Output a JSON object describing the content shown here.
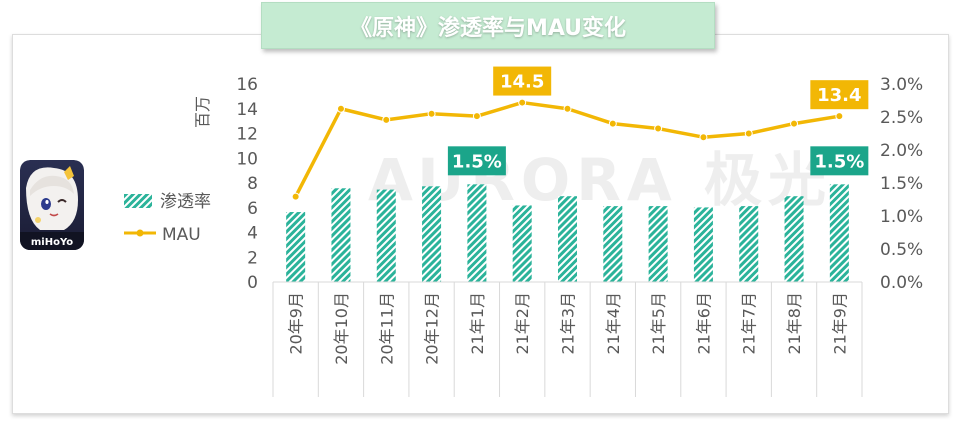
{
  "title": "《原神》渗透率与MAU变化",
  "app_icon": {
    "name": "genshin-app-icon",
    "label": "miHoYo"
  },
  "chart_data": {
    "type": "bar+line",
    "categories": [
      "20年9月",
      "20年10月",
      "20年11月",
      "20年12月",
      "21年1月",
      "21年2月",
      "21年3月",
      "21年4月",
      "21年5月",
      "21年6月",
      "21年7月",
      "21年8月",
      "21年9月"
    ],
    "series": [
      {
        "name": "渗透率",
        "type": "bar",
        "axis": "right",
        "values": [
          1.06,
          1.42,
          1.4,
          1.45,
          1.48,
          1.16,
          1.3,
          1.15,
          1.15,
          1.13,
          1.15,
          1.3,
          1.48
        ]
      },
      {
        "name": "MAU",
        "type": "line",
        "axis": "left",
        "values": [
          6.9,
          14.0,
          13.1,
          13.6,
          13.4,
          14.5,
          14.0,
          12.8,
          12.4,
          11.7,
          12.0,
          12.8,
          13.4
        ]
      }
    ],
    "left_axis": {
      "label": "百万",
      "min": 0,
      "max": 16,
      "ticks": [
        "0",
        "2",
        "4",
        "6",
        "8",
        "10",
        "12",
        "14",
        "16"
      ]
    },
    "right_axis": {
      "min": 0,
      "max": 0.03,
      "ticks": [
        "0.0%",
        "0.5%",
        "1.0%",
        "1.5%",
        "2.0%",
        "2.5%",
        "3.0%"
      ]
    },
    "annotations": [
      {
        "series": "MAU",
        "index": 5,
        "text": "14.5",
        "color": "#f2b705"
      },
      {
        "series": "MAU",
        "index": 12,
        "text": "13.4",
        "color": "#f2b705"
      },
      {
        "series": "渗透率",
        "index": 4,
        "text": "1.5%",
        "color": "#1ba58a"
      },
      {
        "series": "渗透率",
        "index": 12,
        "text": "1.5%",
        "color": "#1ba58a"
      }
    ],
    "legend": {
      "position": "left",
      "items": [
        "渗透率",
        "MAU"
      ]
    },
    "watermark": "AURORA 极光",
    "colors": {
      "bar": "#2bb39a",
      "line": "#f2b705"
    }
  }
}
